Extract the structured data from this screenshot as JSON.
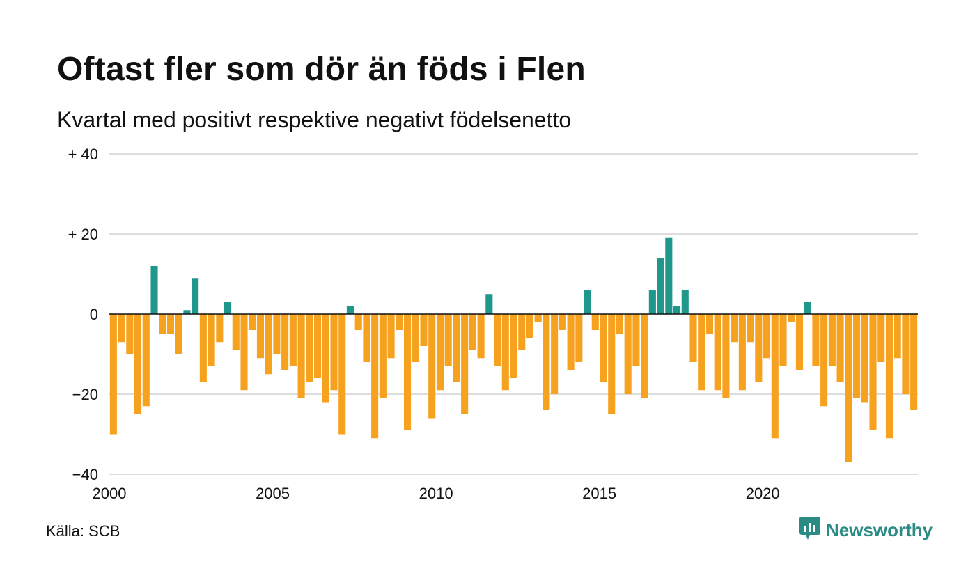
{
  "header": {
    "title": "Oftast fler som dör än föds i Flen",
    "subtitle": "Kvartal med positivt respektive negativt födelsenetto"
  },
  "footer": {
    "source": "Källa: SCB",
    "brand": "Newsworthy",
    "brand_icon": "newsworthy-logo-icon"
  },
  "colors": {
    "positive": "#1f978b",
    "negative": "#f6a21e",
    "grid": "#dddddd",
    "zero_line": "#111111",
    "brand": "#2a8c85"
  },
  "chart_data": {
    "type": "bar",
    "title": "Oftast fler som dör än föds i Flen",
    "subtitle": "Kvartal med positivt respektive negativt födelsenetto",
    "xlabel": "",
    "ylabel": "",
    "x_start": 2000.0,
    "x_end": 2024.75,
    "ylim": [
      -40,
      40
    ],
    "y_ticks": [
      {
        "value": 40,
        "label": "+ 40"
      },
      {
        "value": 20,
        "label": "+ 20"
      },
      {
        "value": 0,
        "label": "0"
      },
      {
        "value": -20,
        "label": "−20"
      },
      {
        "value": -40,
        "label": "−40"
      }
    ],
    "x_ticks": [
      {
        "value": 2000,
        "label": "2000"
      },
      {
        "value": 2005,
        "label": "2005"
      },
      {
        "value": 2010,
        "label": "2010"
      },
      {
        "value": 2015,
        "label": "2015"
      },
      {
        "value": 2020,
        "label": "2020"
      }
    ],
    "grid": true,
    "period": "quarterly, 2000 Q1 – 2024 Q3",
    "values": [
      -30,
      -7,
      -10,
      -25,
      -23,
      12,
      -5,
      -5,
      -10,
      1,
      9,
      -17,
      -13,
      -7,
      3,
      -9,
      -19,
      -4,
      -11,
      -15,
      -10,
      -14,
      -13,
      -21,
      -17,
      -16,
      -22,
      -19,
      -30,
      2,
      -4,
      -12,
      -31,
      -21,
      -11,
      -4,
      -29,
      -12,
      -8,
      -26,
      -19,
      -13,
      -17,
      -25,
      -9,
      -11,
      5,
      -13,
      -19,
      -16,
      -9,
      -6,
      -2,
      -24,
      -20,
      -4,
      -14,
      -12,
      6,
      -4,
      -17,
      -25,
      -5,
      -20,
      -13,
      -21,
      6,
      14,
      19,
      2,
      6,
      -12,
      -19,
      -5,
      -19,
      -21,
      -7,
      -19,
      -7,
      -17,
      -11,
      -31,
      -13,
      -2,
      -14,
      3,
      -13,
      -23,
      -13,
      -17,
      -37,
      -21,
      -22,
      -29,
      -12,
      -31,
      -11,
      -20,
      -24
    ]
  }
}
